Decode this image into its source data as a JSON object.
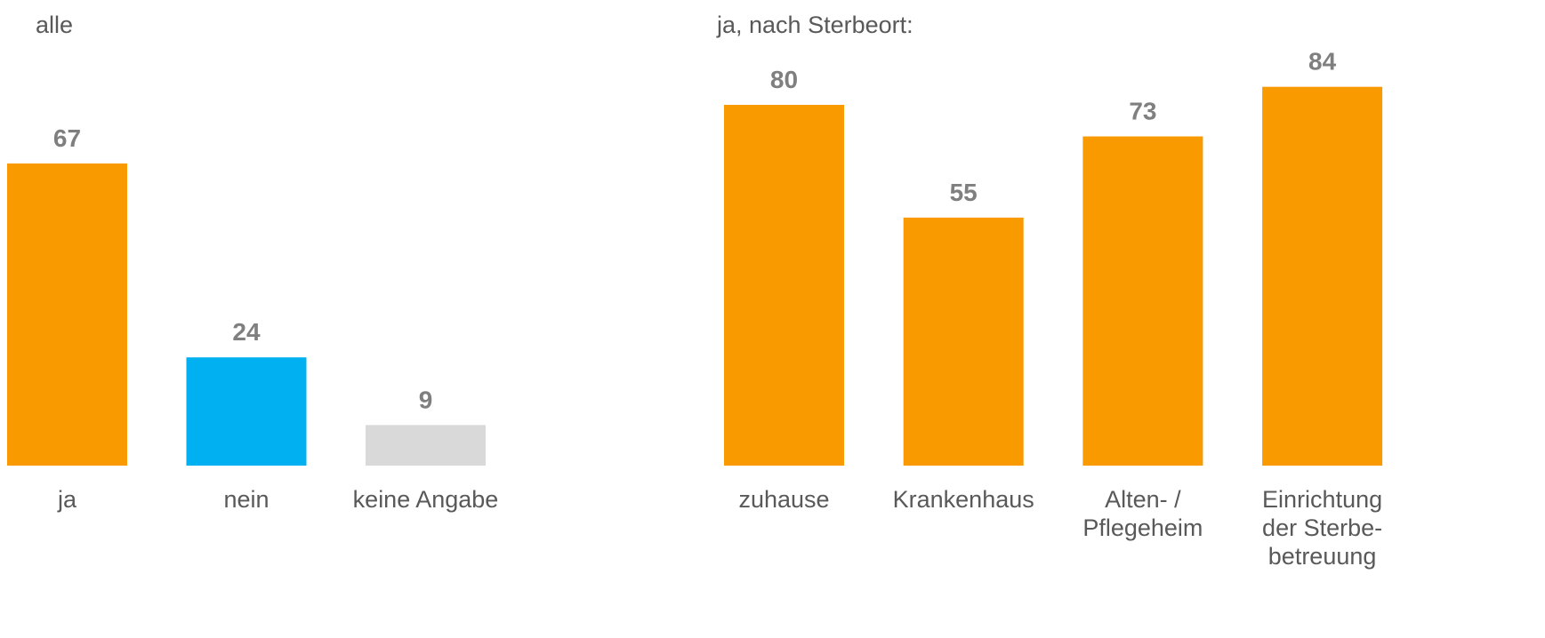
{
  "chart_data": [
    {
      "type": "bar",
      "title": "alle",
      "categories": [
        "ja",
        "nein",
        "keine Angabe"
      ],
      "values": [
        67,
        24,
        9
      ],
      "colors": [
        "#f99a00",
        "#00b0f0",
        "#d9d9d9"
      ],
      "ylim": [
        0,
        100
      ]
    },
    {
      "type": "bar",
      "title": "ja, nach Sterbeort:",
      "categories": [
        "zuhause",
        "Krankenhaus",
        "Alten- /\nPflegeheim",
        "Einrichtung\nder Sterbe-\nbetreuung"
      ],
      "values": [
        80,
        55,
        73,
        84
      ],
      "colors": [
        "#f99a00",
        "#f99a00",
        "#f99a00",
        "#f99a00"
      ],
      "ylim": [
        0,
        100
      ]
    }
  ]
}
